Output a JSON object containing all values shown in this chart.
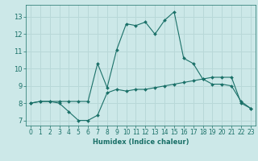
{
  "xlabel": "Humidex (Indice chaleur)",
  "ylabel": "",
  "background_color": "#cce8e8",
  "grid_color": "#b8d8d8",
  "line_color": "#1a7068",
  "xlim": [
    -0.5,
    23.5
  ],
  "ylim": [
    6.7,
    13.7
  ],
  "xticks": [
    0,
    1,
    2,
    3,
    4,
    5,
    6,
    7,
    8,
    9,
    10,
    11,
    12,
    13,
    14,
    15,
    16,
    17,
    18,
    19,
    20,
    21,
    22,
    23
  ],
  "yticks": [
    7,
    8,
    9,
    10,
    11,
    12,
    13
  ],
  "line1_x": [
    0,
    1,
    2,
    3,
    4,
    5,
    6,
    7,
    8,
    9,
    10,
    11,
    12,
    13,
    14,
    15,
    16,
    17,
    18,
    19,
    20,
    21,
    22,
    23
  ],
  "line1_y": [
    8.0,
    8.1,
    8.1,
    8.0,
    7.5,
    7.0,
    7.0,
    7.3,
    8.6,
    8.8,
    8.7,
    8.8,
    8.8,
    8.9,
    9.0,
    9.1,
    9.2,
    9.3,
    9.4,
    9.5,
    9.5,
    9.5,
    8.0,
    7.7
  ],
  "line2_x": [
    0,
    1,
    2,
    3,
    4,
    5,
    6,
    7,
    8,
    9,
    10,
    11,
    12,
    13,
    14,
    15,
    16,
    17,
    18,
    19,
    20,
    21,
    22,
    23
  ],
  "line2_y": [
    8.0,
    8.1,
    8.1,
    8.1,
    8.1,
    8.1,
    8.1,
    10.3,
    8.9,
    11.1,
    12.6,
    12.5,
    12.7,
    12.0,
    12.8,
    13.3,
    10.6,
    10.3,
    9.4,
    9.1,
    9.1,
    9.0,
    8.1,
    7.7
  ]
}
